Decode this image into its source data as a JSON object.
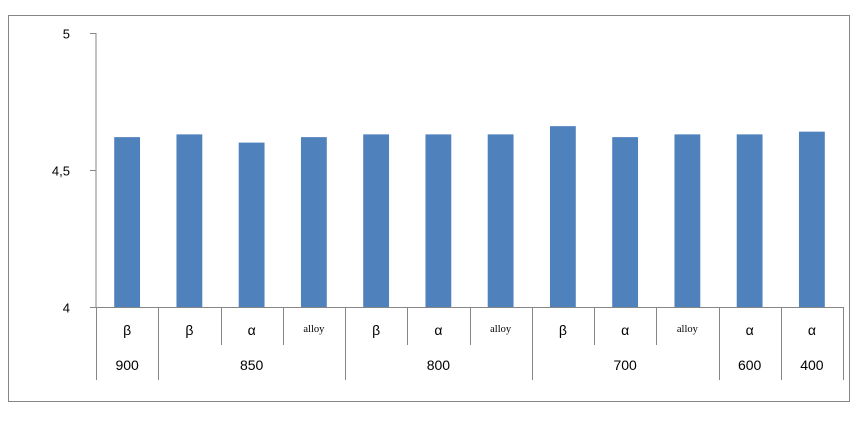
{
  "chart_data": {
    "type": "bar",
    "ylim": [
      4,
      5
    ],
    "yticks": [
      4,
      4.5,
      5
    ],
    "ytick_labels": [
      "4",
      "4,5",
      "5"
    ],
    "bar_color": "#4f81bd",
    "grid": false,
    "title": "",
    "xlabel": "",
    "ylabel": "",
    "categories": [
      "β",
      "β",
      "α",
      "alloy",
      "β",
      "α",
      "alloy",
      "β",
      "α",
      "alloy",
      "α",
      "α"
    ],
    "groups": [
      {
        "label": "900",
        "count": 1
      },
      {
        "label": "850",
        "count": 3
      },
      {
        "label": "800",
        "count": 3
      },
      {
        "label": "700",
        "count": 3
      },
      {
        "label": "600",
        "count": 1
      },
      {
        "label": "400",
        "count": 1
      }
    ],
    "values": [
      4.62,
      4.63,
      4.6,
      4.62,
      4.63,
      4.63,
      4.63,
      4.66,
      4.62,
      4.63,
      4.63,
      4.64
    ]
  }
}
